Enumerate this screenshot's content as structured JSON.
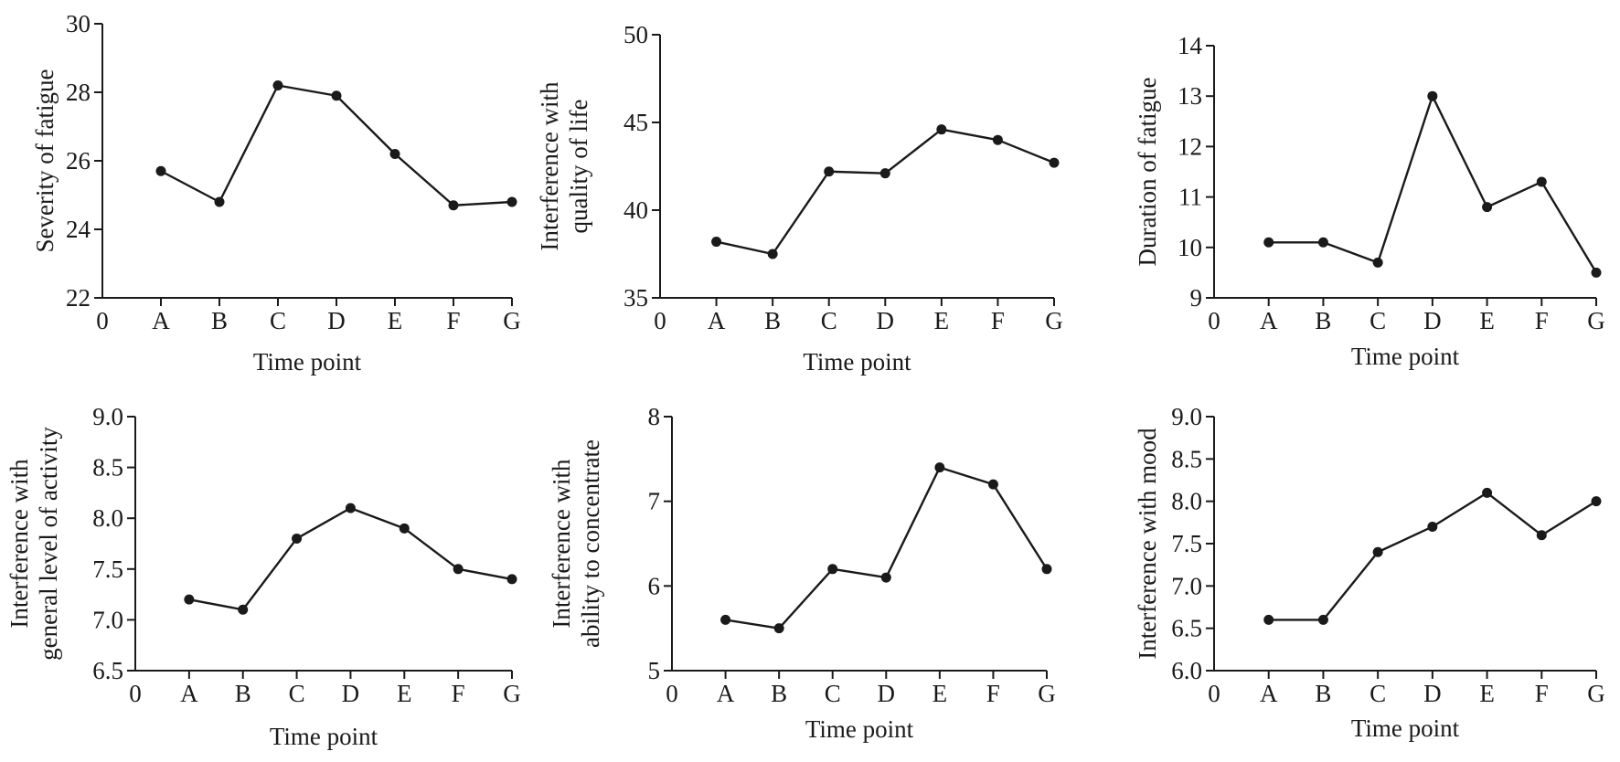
{
  "chart_data": [
    {
      "type": "line",
      "xlabel": "Time point",
      "ylabel": [
        "Severity of fatigue"
      ],
      "x_ticks": [
        "0",
        "A",
        "B",
        "C",
        "D",
        "E",
        "F",
        "G"
      ],
      "categories": [
        "A",
        "B",
        "C",
        "D",
        "E",
        "F",
        "G"
      ],
      "values": [
        25.7,
        24.8,
        28.2,
        27.9,
        26.2,
        24.7,
        24.8
      ],
      "ylim": [
        22,
        30
      ],
      "y_ticks": [
        "22",
        "24",
        "26",
        "28",
        "30"
      ]
    },
    {
      "type": "line",
      "xlabel": "Time point",
      "ylabel": [
        "Interference with",
        "quality of life"
      ],
      "x_ticks": [
        "0",
        "A",
        "B",
        "C",
        "D",
        "E",
        "F",
        "G"
      ],
      "categories": [
        "A",
        "B",
        "C",
        "D",
        "E",
        "F",
        "G"
      ],
      "values": [
        38.2,
        37.5,
        42.2,
        42.1,
        44.6,
        44.0,
        42.7
      ],
      "ylim": [
        35,
        50
      ],
      "y_ticks": [
        "35",
        "40",
        "45",
        "50"
      ]
    },
    {
      "type": "line",
      "xlabel": "Time point",
      "ylabel": [
        "Duration of fatigue"
      ],
      "x_ticks": [
        "0",
        "A",
        "B",
        "C",
        "D",
        "E",
        "F",
        "G"
      ],
      "categories": [
        "A",
        "B",
        "C",
        "D",
        "E",
        "F",
        "G"
      ],
      "values": [
        10.1,
        10.1,
        9.7,
        13.0,
        10.8,
        11.3,
        9.5
      ],
      "ylim": [
        9,
        14
      ],
      "y_ticks": [
        "9",
        "10",
        "11",
        "12",
        "13",
        "14"
      ]
    },
    {
      "type": "line",
      "xlabel": "Time point",
      "ylabel": [
        "Interference with",
        "general level of activity"
      ],
      "x_ticks": [
        "0",
        "A",
        "B",
        "C",
        "D",
        "E",
        "F",
        "G"
      ],
      "categories": [
        "A",
        "B",
        "C",
        "D",
        "E",
        "F",
        "G"
      ],
      "values": [
        7.2,
        7.1,
        7.8,
        8.1,
        7.9,
        7.5,
        7.4
      ],
      "ylim": [
        6.5,
        9.0
      ],
      "y_ticks": [
        "6.5",
        "7.0",
        "7.5",
        "8.0",
        "8.5",
        "9.0"
      ]
    },
    {
      "type": "line",
      "xlabel": "Time point",
      "ylabel": [
        "Interference with",
        "ability to concentrate"
      ],
      "x_ticks": [
        "0",
        "A",
        "B",
        "C",
        "D",
        "E",
        "F",
        "G"
      ],
      "categories": [
        "A",
        "B",
        "C",
        "D",
        "E",
        "F",
        "G"
      ],
      "values": [
        5.6,
        5.5,
        6.2,
        6.1,
        7.4,
        7.2,
        6.2
      ],
      "ylim": [
        5,
        8
      ],
      "y_ticks": [
        "5",
        "6",
        "7",
        "8"
      ]
    },
    {
      "type": "line",
      "xlabel": "Time point",
      "ylabel": [
        "Interference with mood"
      ],
      "x_ticks": [
        "0",
        "A",
        "B",
        "C",
        "D",
        "E",
        "F",
        "G"
      ],
      "categories": [
        "A",
        "B",
        "C",
        "D",
        "E",
        "F",
        "G"
      ],
      "values": [
        6.6,
        6.6,
        7.4,
        7.7,
        8.1,
        7.6,
        8.0
      ],
      "ylim": [
        6.0,
        9.0
      ],
      "y_ticks": [
        "6.0",
        "6.5",
        "7.0",
        "7.5",
        "8.0",
        "8.5",
        "9.0"
      ]
    }
  ],
  "colors": {
    "line": "#1a1a1a",
    "background": "#ffffff"
  }
}
